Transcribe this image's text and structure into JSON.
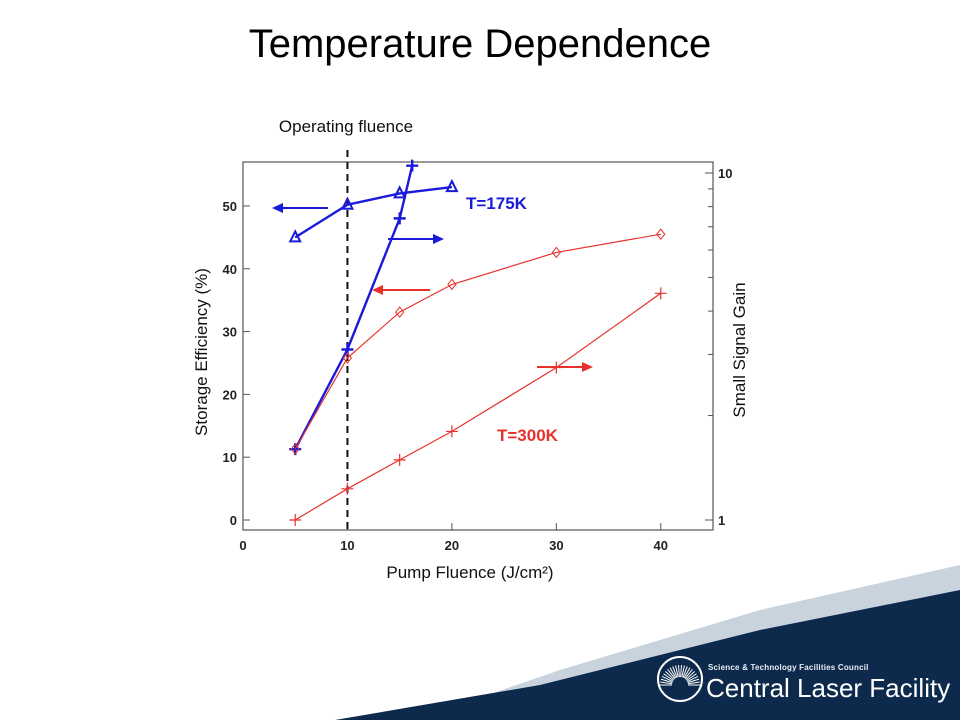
{
  "slide": {
    "title": "Temperature Dependence"
  },
  "chart_data": {
    "type": "line",
    "xlabel": "Pump Fluence (J/cm²)",
    "ylabel_left": "Storage Efficiency (%)",
    "ylabel_right": "Small Signal Gain",
    "xlim": [
      0,
      45
    ],
    "ylim_left": [
      0,
      57
    ],
    "ylim_right": [
      1,
      10
    ],
    "yscale_right": "log",
    "x_ticks": [
      0,
      10,
      20,
      30,
      40
    ],
    "y_ticks_left": [
      0,
      10,
      20,
      30,
      40,
      50
    ],
    "y_ticks_right": [
      1,
      10
    ],
    "grid": false,
    "annotation": {
      "text": "Operating fluence",
      "x": 10
    },
    "series": [
      {
        "name": "T=175K",
        "axis": "left",
        "marker": "triangle",
        "x": [
          5,
          10,
          15,
          20
        ],
        "y": [
          45,
          50.2,
          52,
          53
        ],
        "color": "#1a1adb"
      },
      {
        "name": "",
        "axis": "right",
        "marker": "plus",
        "x": [
          5,
          10,
          15,
          16.2
        ],
        "y": [
          1.6,
          3.1,
          7.4,
          10.5
        ],
        "color": "#1a1adb"
      },
      {
        "name": "T=300K",
        "axis": "left",
        "marker": "diamond",
        "x": [
          5,
          10,
          15,
          20,
          30,
          40
        ],
        "y": [
          11.3,
          25.8,
          33.1,
          37.5,
          42.6,
          45.5
        ],
        "color": "#e8312c"
      },
      {
        "name": "",
        "axis": "right",
        "marker": "plus",
        "x": [
          5,
          10,
          15,
          20,
          30,
          40
        ],
        "y": [
          1.0,
          1.23,
          1.49,
          1.8,
          2.75,
          4.5
        ],
        "color": "#e8312c"
      }
    ],
    "arrows": [
      {
        "color": "#1a1adb",
        "direction": "left"
      },
      {
        "color": "#1a1adb",
        "direction": "right"
      },
      {
        "color": "#e8312c",
        "direction": "left"
      },
      {
        "color": "#e8312c",
        "direction": "right"
      }
    ]
  },
  "logo": {
    "council": "Science & Technology Facilities Council",
    "facility": "Central Laser Facility",
    "colors": {
      "navy": "#0d2a4d",
      "light": "#c9d3de"
    }
  }
}
